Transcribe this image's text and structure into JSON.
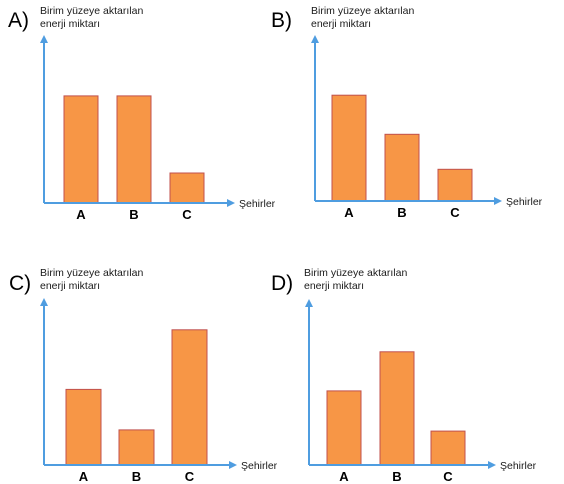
{
  "colors": {
    "bar_fill": "#f79646",
    "bar_stroke": "#c0504d",
    "axis": "#4f9de0"
  },
  "chart_data": [
    {
      "type": "bar",
      "option": "A)",
      "ylabel": [
        "Birim yüzeye aktarılan",
        "enerji miktarı"
      ],
      "xlabel": "Şehirler",
      "categories": [
        "A",
        "B",
        "C"
      ],
      "values": [
        100,
        100,
        28
      ],
      "ylim": [
        0,
        155
      ]
    },
    {
      "type": "bar",
      "option": "B)",
      "ylabel": [
        "Birim yüzeye aktarılan",
        "enerji miktarı"
      ],
      "xlabel": "Şehirler",
      "categories": [
        "A",
        "B",
        "C"
      ],
      "values": [
        100,
        63,
        30
      ],
      "ylim": [
        0,
        155
      ]
    },
    {
      "type": "bar",
      "option": "C)",
      "ylabel": [
        "Birim yüzeye aktarılan",
        "enerji miktarı"
      ],
      "xlabel": "Şehirler",
      "categories": [
        "A",
        "B",
        "C"
      ],
      "values": [
        71,
        33,
        127
      ],
      "ylim": [
        0,
        155
      ]
    },
    {
      "type": "bar",
      "option": "D)",
      "ylabel": [
        "Birim yüzeye aktarılan",
        "enerji miktarı"
      ],
      "xlabel": "Şehirler",
      "categories": [
        "A",
        "B",
        "C"
      ],
      "values": [
        70,
        107,
        32
      ],
      "ylim": [
        0,
        155
      ]
    }
  ]
}
